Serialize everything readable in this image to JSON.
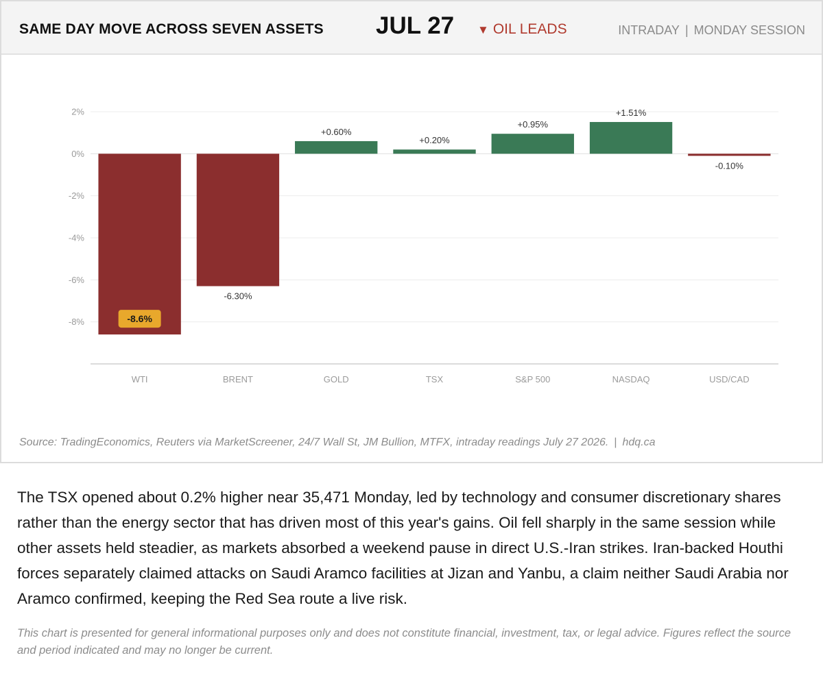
{
  "header": {
    "title": "SAME DAY MOVE ACROSS SEVEN ASSETS",
    "date": "JUL 27",
    "trend_glyph": "▼",
    "trend_label": "OIL LEADS",
    "meta_left": "INTRADAY",
    "meta_sep": "|",
    "meta_right": "MONDAY SESSION"
  },
  "chart_data": {
    "type": "bar",
    "categories": [
      "WTI",
      "BRENT",
      "GOLD",
      "TSX",
      "S&P 500",
      "NASDAQ",
      "USD/CAD"
    ],
    "values": [
      -8.6,
      -6.3,
      0.6,
      0.2,
      0.95,
      1.51,
      -0.1
    ],
    "data_labels": [
      "-8.6%",
      "-6.30%",
      "+0.60%",
      "+0.20%",
      "+0.95%",
      "+1.51%",
      "-0.10%"
    ],
    "highlight_index": 0,
    "y_ticks": [
      2,
      0,
      -2,
      -4,
      -6,
      -8
    ],
    "y_tick_labels": [
      "2%",
      "0%",
      "-2%",
      "-4%",
      "-6%",
      "-8%"
    ],
    "ylim": [
      -10,
      2
    ],
    "grid": true,
    "colors": {
      "negative": "#8b2e2e",
      "positive": "#3a7a56",
      "highlight_badge": "#e8a82c",
      "grid": "#ececec",
      "axis": "#cfcfcf",
      "tick_text": "#9a9a9a",
      "label_text": "#333333"
    }
  },
  "source": {
    "text": "Source: TradingEconomics, Reuters via MarketScreener, 24/7 Wall St, JM Bullion, MTFX, intraday readings July 27 2026.",
    "sep": "|",
    "site": "hdq.ca"
  },
  "body_text": "The TSX opened about 0.2% higher near 35,471 Monday, led by technology and consumer discretionary shares rather than the energy sector that has driven most of this year's gains. Oil fell sharply in the same session while other assets held steadier, as markets absorbed a weekend pause in direct U.S.-Iran strikes. Iran-backed Houthi forces separately claimed attacks on Saudi Aramco facilities at Jizan and Yanbu, a claim neither Saudi Arabia nor Aramco confirmed, keeping the Red Sea route a live risk.",
  "disclaimer": "This chart is presented for general informational purposes only and does not constitute financial, investment, tax, or legal advice. Figures reflect the source and period indicated and may no longer be current."
}
